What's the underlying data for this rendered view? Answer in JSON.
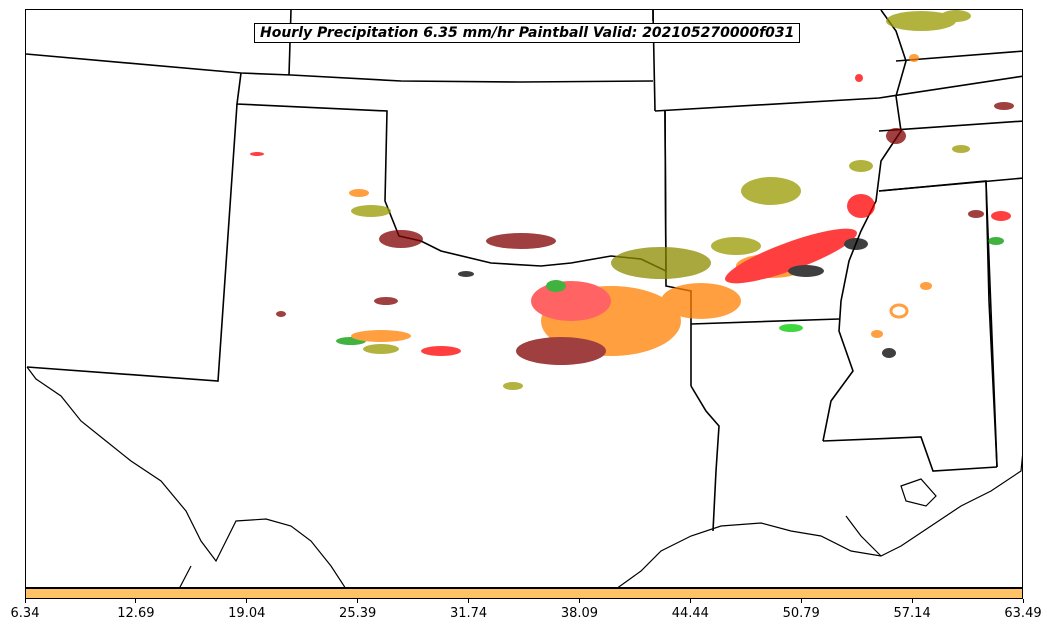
{
  "title": "Hourly Precipitation 6.35 mm/hr Paintball Valid: 202105270000f031",
  "colorbar": {
    "color": "#ffc266",
    "ticks": [
      "6.34",
      "12.69",
      "19.04",
      "25.39",
      "31.74",
      "38.09",
      "44.44",
      "50.79",
      "57.14",
      "63.49"
    ]
  },
  "member_colors": [
    "#800000",
    "#ff0000",
    "#ff8000",
    "#999900",
    "#009900",
    "#000000",
    "#8b8b00"
  ]
}
